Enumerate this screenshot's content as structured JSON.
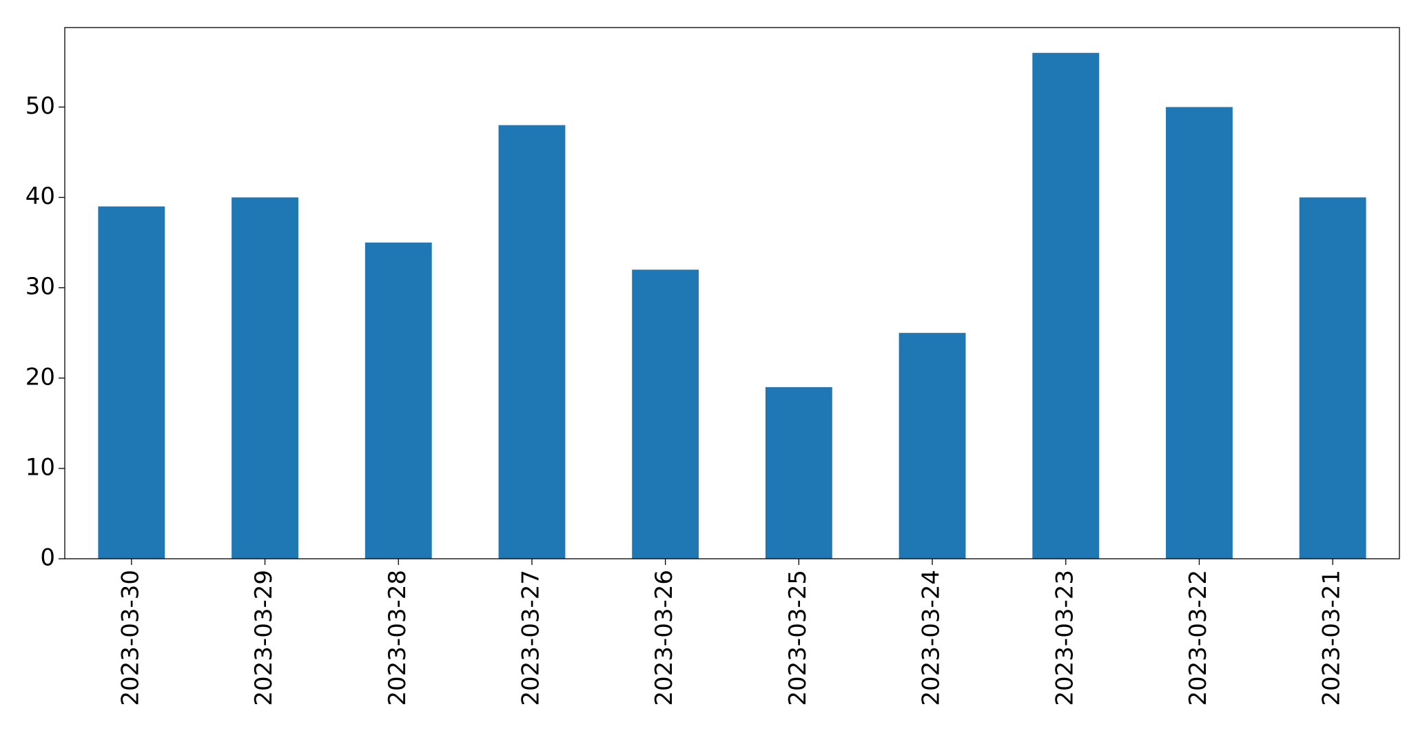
{
  "chart_data": {
    "type": "bar",
    "categories": [
      "2023-03-30",
      "2023-03-29",
      "2023-03-28",
      "2023-03-27",
      "2023-03-26",
      "2023-03-25",
      "2023-03-24",
      "2023-03-23",
      "2023-03-22",
      "2023-03-21"
    ],
    "values": [
      39,
      40,
      35,
      48,
      32,
      19,
      25,
      56,
      50,
      40
    ],
    "color": "#1f77b4",
    "ylim": [
      0,
      58.8
    ],
    "yticks": [
      0,
      10,
      20,
      30,
      40,
      50
    ],
    "grid": false
  }
}
